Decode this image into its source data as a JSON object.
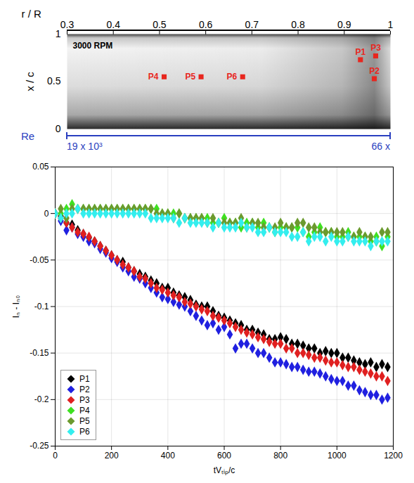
{
  "chart_data": [
    {
      "type": "scatter",
      "xlabel": "r / R",
      "ylabel": "x / c",
      "xlim": [
        0.3,
        1
      ],
      "xticks": [
        0.3,
        0.4,
        0.5,
        0.6,
        0.7,
        0.8,
        0.9,
        1
      ],
      "ylim": [
        0,
        1
      ],
      "yticks": [
        0,
        0.5,
        1
      ],
      "annotations": [
        "3000 RPM"
      ],
      "marker": "square",
      "series": [
        {
          "name": "P1",
          "color": "#e8261e",
          "x": [
            0.935
          ],
          "values": [
            0.73
          ]
        },
        {
          "name": "P2",
          "color": "#e8261e",
          "x": [
            0.965
          ],
          "values": [
            0.53
          ]
        },
        {
          "name": "P3",
          "color": "#e8261e",
          "x": [
            0.968
          ],
          "values": [
            0.77
          ]
        },
        {
          "name": "P4",
          "color": "#e8261e",
          "x": [
            0.51
          ],
          "values": [
            0.55
          ]
        },
        {
          "name": "P5",
          "color": "#e8261e",
          "x": [
            0.59
          ],
          "values": [
            0.55
          ]
        },
        {
          "name": "P6",
          "color": "#e8261e",
          "x": [
            0.68
          ],
          "values": [
            0.55
          ]
        }
      ],
      "re_axis": {
        "label": "Re",
        "color": "#2a3fc0",
        "lim": [
          19000,
          66000
        ],
        "ticks": [
          {
            "value": 19000,
            "label": "19 x 10³"
          },
          {
            "value": 66000,
            "label": "66 x"
          }
        ]
      }
    },
    {
      "type": "scatter",
      "xlabel": "tVₜᵢₚ/c",
      "ylabel": "Iₙ - Iₙ₀",
      "xlim": [
        0,
        1200
      ],
      "xticks": [
        0,
        200,
        400,
        600,
        800,
        1000,
        1200
      ],
      "ylim": [
        -0.25,
        0.05
      ],
      "yticks": [
        -0.25,
        -0.2,
        -0.15,
        -0.1,
        -0.05,
        0,
        0.05
      ],
      "grid": true,
      "legend": "bottom-left",
      "marker": "diamond",
      "x": [
        0,
        20,
        40,
        60,
        80,
        100,
        120,
        140,
        160,
        180,
        200,
        220,
        240,
        260,
        280,
        300,
        320,
        340,
        360,
        380,
        400,
        420,
        440,
        460,
        480,
        500,
        520,
        540,
        560,
        580,
        600,
        620,
        640,
        660,
        680,
        700,
        720,
        740,
        760,
        780,
        800,
        820,
        840,
        860,
        880,
        900,
        920,
        940,
        960,
        980,
        1000,
        1020,
        1040,
        1060,
        1080,
        1100,
        1120,
        1140,
        1160,
        1180
      ],
      "series": [
        {
          "name": "P1",
          "color": "#000000",
          "values": [
            0,
            -0.003,
            -0.01,
            -0.012,
            -0.018,
            -0.022,
            -0.026,
            -0.03,
            -0.035,
            -0.04,
            -0.045,
            -0.05,
            -0.052,
            -0.058,
            -0.062,
            -0.065,
            -0.068,
            -0.072,
            -0.075,
            -0.08,
            -0.08,
            -0.085,
            -0.088,
            -0.09,
            -0.093,
            -0.098,
            -0.1,
            -0.1,
            -0.105,
            -0.11,
            -0.112,
            -0.115,
            -0.118,
            -0.12,
            -0.125,
            -0.125,
            -0.128,
            -0.13,
            -0.135,
            -0.135,
            -0.133,
            -0.135,
            -0.14,
            -0.14,
            -0.142,
            -0.145,
            -0.145,
            -0.15,
            -0.148,
            -0.15,
            -0.15,
            -0.155,
            -0.155,
            -0.158,
            -0.16,
            -0.162,
            -0.16,
            -0.165,
            -0.162,
            -0.165
          ]
        },
        {
          "name": "P2",
          "color": "#2020e0",
          "values": [
            0,
            -0.008,
            -0.018,
            -0.015,
            -0.022,
            -0.025,
            -0.03,
            -0.032,
            -0.038,
            -0.042,
            -0.048,
            -0.052,
            -0.058,
            -0.062,
            -0.068,
            -0.07,
            -0.075,
            -0.08,
            -0.085,
            -0.09,
            -0.092,
            -0.095,
            -0.098,
            -0.1,
            -0.105,
            -0.11,
            -0.115,
            -0.12,
            -0.118,
            -0.125,
            -0.122,
            -0.13,
            -0.145,
            -0.14,
            -0.14,
            -0.145,
            -0.15,
            -0.15,
            -0.155,
            -0.16,
            -0.16,
            -0.162,
            -0.165,
            -0.165,
            -0.168,
            -0.17,
            -0.17,
            -0.172,
            -0.175,
            -0.178,
            -0.18,
            -0.18,
            -0.185,
            -0.185,
            -0.19,
            -0.192,
            -0.195,
            -0.195,
            -0.2,
            -0.198
          ]
        },
        {
          "name": "P3",
          "color": "#e02020",
          "values": [
            0,
            -0.005,
            -0.01,
            -0.015,
            -0.02,
            -0.022,
            -0.025,
            -0.03,
            -0.035,
            -0.04,
            -0.045,
            -0.05,
            -0.055,
            -0.058,
            -0.062,
            -0.068,
            -0.07,
            -0.075,
            -0.08,
            -0.082,
            -0.085,
            -0.088,
            -0.09,
            -0.095,
            -0.097,
            -0.1,
            -0.103,
            -0.105,
            -0.11,
            -0.112,
            -0.115,
            -0.118,
            -0.122,
            -0.125,
            -0.128,
            -0.13,
            -0.133,
            -0.135,
            -0.138,
            -0.14,
            -0.14,
            -0.145,
            -0.145,
            -0.15,
            -0.15,
            -0.152,
            -0.155,
            -0.155,
            -0.158,
            -0.16,
            -0.16,
            -0.163,
            -0.165,
            -0.165,
            -0.168,
            -0.17,
            -0.172,
            -0.175,
            -0.175,
            -0.18
          ]
        },
        {
          "name": "P4",
          "color": "#3fe021",
          "values": [
            0,
            0,
            0.005,
            0.01,
            0.005,
            0.005,
            0.005,
            0.005,
            0.005,
            0.005,
            0.005,
            0.005,
            0.005,
            0.005,
            0.005,
            0.005,
            0.005,
            0.005,
            0.005,
            0,
            0,
            0,
            0,
            -0.005,
            -0.005,
            -0.005,
            -0.005,
            -0.005,
            -0.01,
            -0.01,
            -0.005,
            -0.01,
            -0.01,
            -0.015,
            -0.01,
            -0.01,
            -0.015,
            -0.01,
            -0.015,
            -0.02,
            -0.015,
            -0.015,
            -0.015,
            -0.015,
            -0.02,
            -0.025,
            -0.02,
            -0.015,
            -0.02,
            -0.02,
            -0.025,
            -0.025,
            -0.02,
            -0.025,
            -0.025,
            -0.025,
            -0.03,
            -0.025,
            -0.035,
            -0.025
          ]
        },
        {
          "name": "P5",
          "color": "#6b9a2e",
          "values": [
            0,
            0.005,
            -0.005,
            0.005,
            0.005,
            0.005,
            0.005,
            0.005,
            0.005,
            0.005,
            0.005,
            0.005,
            0.005,
            0.005,
            0.005,
            0.005,
            0.005,
            0.005,
            0,
            0,
            0,
            -0.005,
            0,
            -0.005,
            -0.005,
            -0.005,
            -0.005,
            -0.01,
            -0.005,
            -0.01,
            -0.01,
            -0.01,
            -0.01,
            -0.005,
            -0.015,
            -0.01,
            -0.01,
            -0.015,
            -0.015,
            -0.015,
            -0.01,
            -0.015,
            -0.015,
            -0.01,
            -0.01,
            -0.015,
            -0.015,
            -0.02,
            -0.02,
            -0.02,
            -0.02,
            -0.02,
            -0.025,
            -0.025,
            -0.02,
            -0.025,
            -0.025,
            -0.03,
            -0.02,
            -0.02
          ]
        },
        {
          "name": "P6",
          "color": "#33eeee",
          "values": [
            0,
            -0.005,
            0,
            0,
            0.005,
            0,
            0,
            0,
            0,
            0,
            0,
            0,
            0,
            0,
            0,
            0,
            0,
            -0.005,
            -0.005,
            -0.005,
            -0.005,
            -0.005,
            -0.01,
            -0.005,
            -0.01,
            -0.01,
            -0.01,
            -0.01,
            -0.015,
            -0.01,
            -0.015,
            -0.015,
            -0.015,
            -0.01,
            -0.015,
            -0.015,
            -0.02,
            -0.02,
            -0.015,
            -0.02,
            -0.02,
            -0.02,
            -0.025,
            -0.025,
            -0.02,
            -0.03,
            -0.025,
            -0.025,
            -0.03,
            -0.025,
            -0.03,
            -0.03,
            -0.025,
            -0.03,
            -0.03,
            -0.03,
            -0.035,
            -0.03,
            -0.03,
            -0.03
          ]
        }
      ]
    }
  ]
}
